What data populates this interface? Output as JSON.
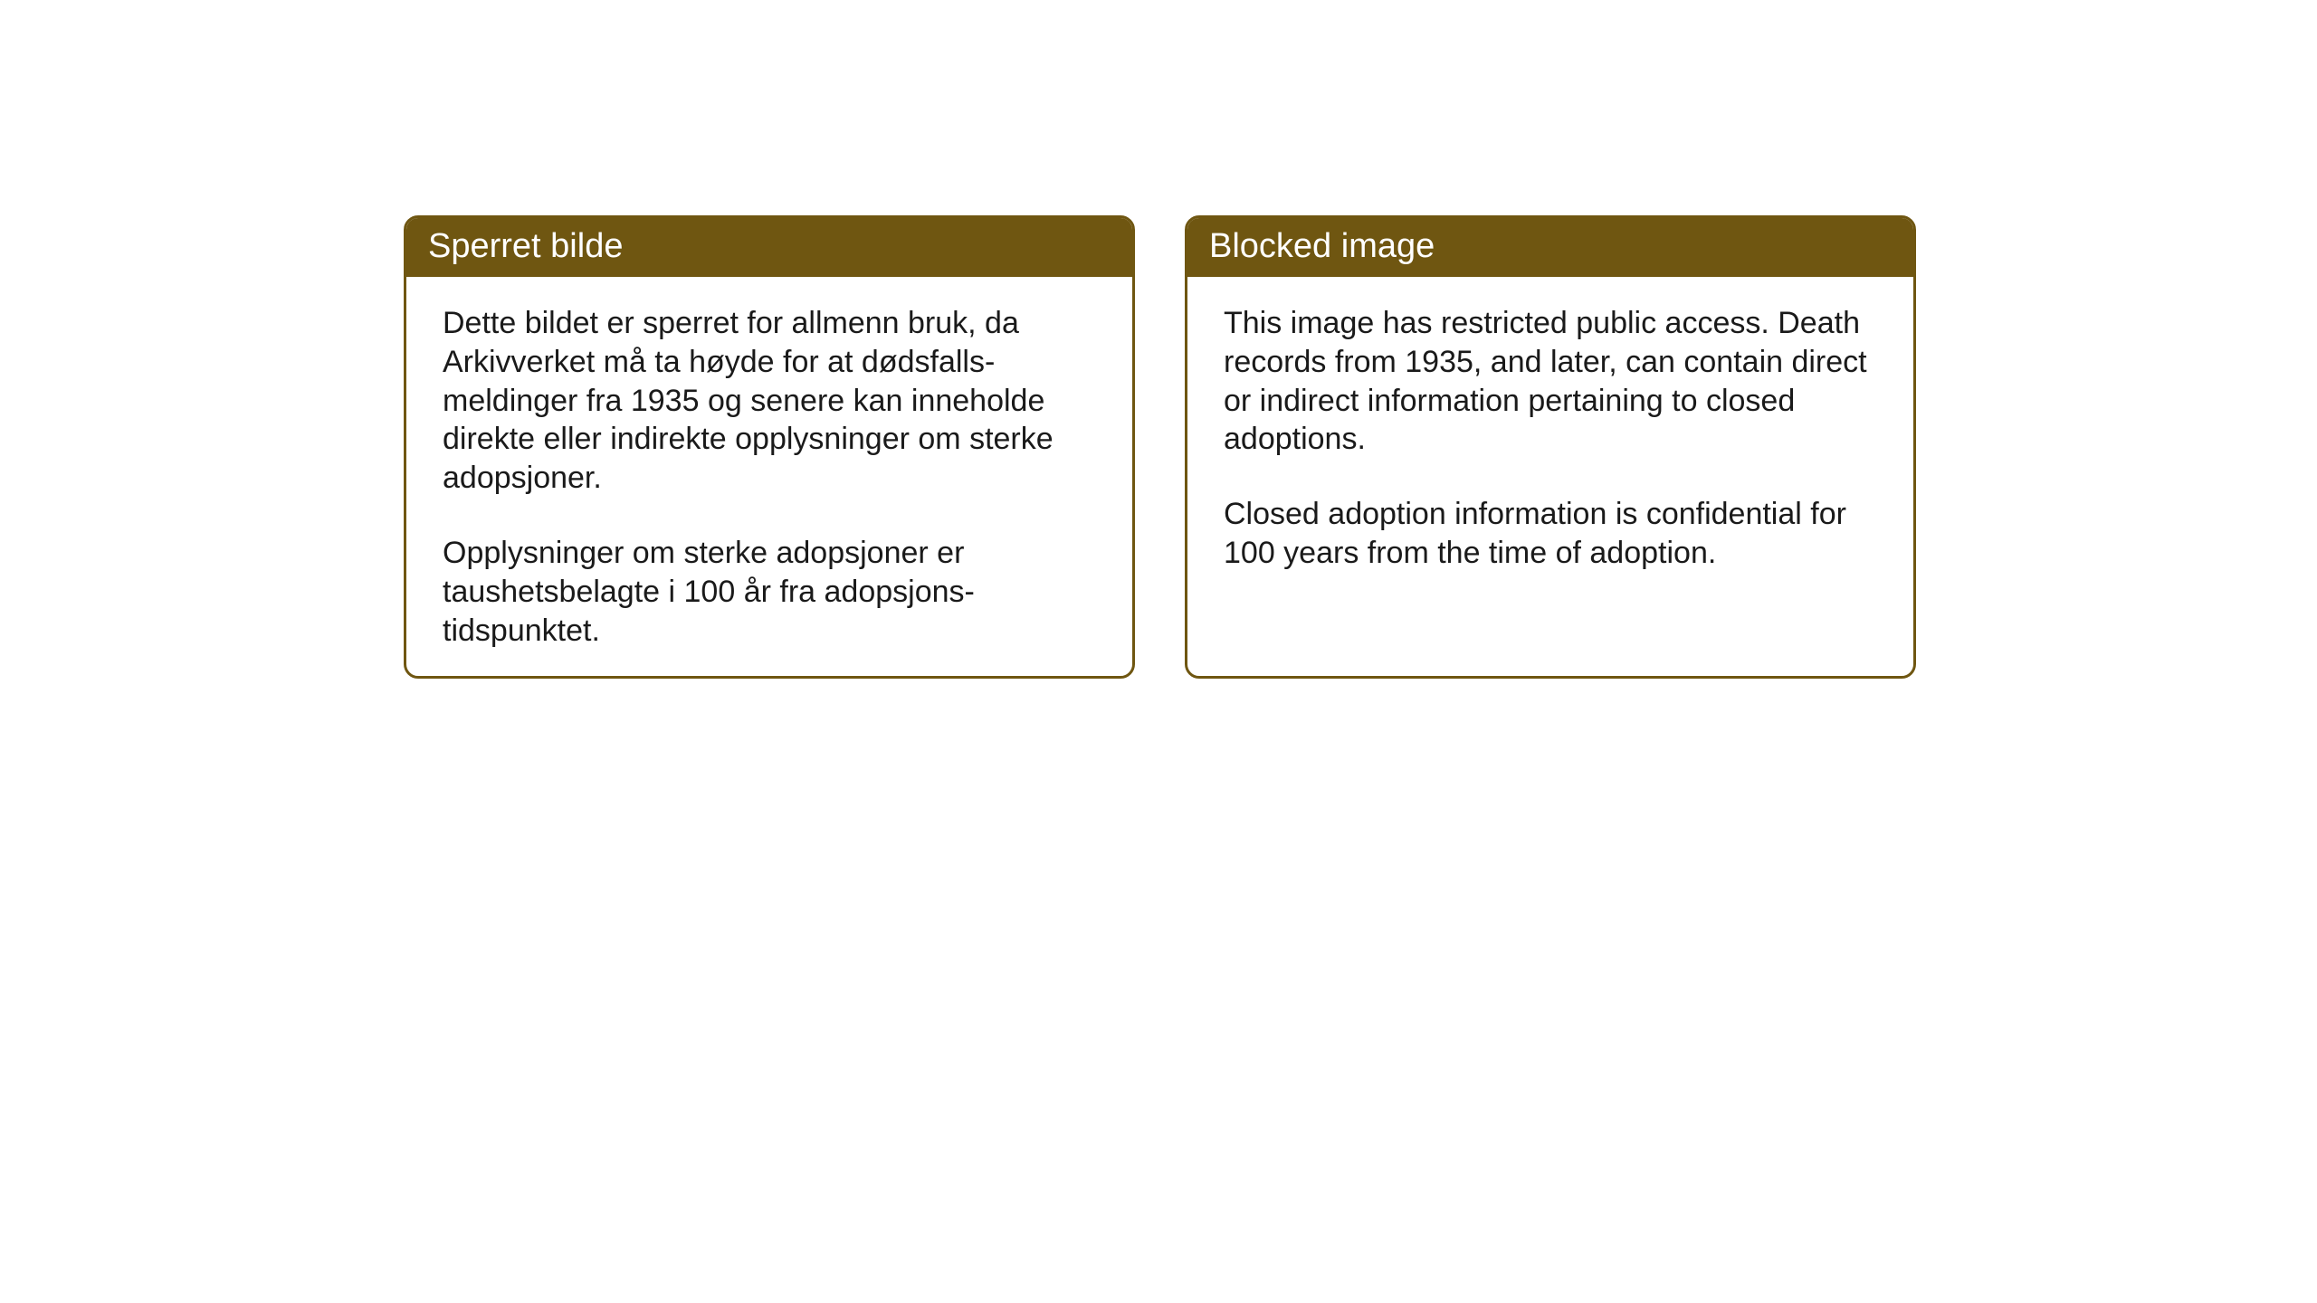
{
  "cards": [
    {
      "title": "Sperret bilde",
      "paragraph1": "Dette bildet er sperret for allmenn bruk, da Arkivverket må ta høyde for at dødsfalls-meldinger fra 1935 og senere kan inneholde direkte eller indirekte opplysninger om sterke adopsjoner.",
      "paragraph2": "Opplysninger om sterke adopsjoner er taushetsbelagte i 100 år fra adopsjons-tidspunktet."
    },
    {
      "title": "Blocked image",
      "paragraph1": "This image has restricted public access. Death records from 1935, and later, can contain direct or indirect information pertaining to closed adoptions.",
      "paragraph2": "Closed adoption information is confidential for 100 years from the time of adoption."
    }
  ],
  "styling": {
    "header_bg_color": "#6f5611",
    "header_text_color": "#ffffff",
    "border_color": "#6f5611",
    "body_bg_color": "#ffffff",
    "body_text_color": "#1a1a1a",
    "page_bg_color": "#ffffff",
    "header_fontsize": 38,
    "body_fontsize": 34,
    "border_width": 3,
    "border_radius": 16
  }
}
